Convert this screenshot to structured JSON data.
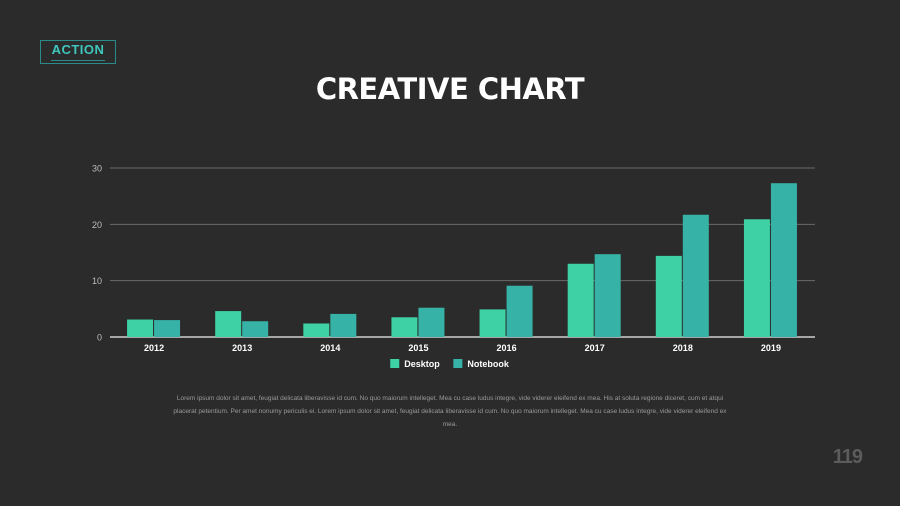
{
  "logo": {
    "text": "ACTION"
  },
  "title": "CREATIVE CHART",
  "description": "Lorem ipsum dolor sit amet, feugiat delicata liberavisse id cum. No quo maiorum intelleget. Mea cu case ludus integre, vide viderer eleifend ex mea. His at soluta regione diceret, cum et atqui placerat petentium. Per amet nonumy periculis ei. Lorem ipsum dolor sit amet, feugiat delicata liberavisse id cum. No quo maiorum intelleget. Mea cu case ludus integre, vide viderer eleifend ex mea.",
  "page_number": "119",
  "colors": {
    "desktop": "#3dd1a5",
    "notebook": "#36b3a6",
    "gridline": "#6a6a6a",
    "axis": "#cfcfcf",
    "background": "#2b2b2b"
  },
  "chart_data": {
    "type": "bar",
    "title": "CREATIVE CHART",
    "xlabel": "",
    "ylabel": "",
    "categories": [
      "2012",
      "2013",
      "2014",
      "2015",
      "2016",
      "2017",
      "2018",
      "2019"
    ],
    "series": [
      {
        "name": "Desktop",
        "values": [
          3.1,
          4.6,
          2.4,
          3.5,
          4.9,
          13.0,
          14.4,
          20.9
        ]
      },
      {
        "name": "Notebook",
        "values": [
          3.0,
          2.8,
          4.1,
          5.2,
          9.1,
          14.7,
          21.7,
          27.3
        ]
      }
    ],
    "yticks": [
      "0",
      "10",
      "20",
      "30"
    ],
    "ylim": [
      0,
      30
    ],
    "grid": true,
    "legend_position": "bottom-center"
  }
}
